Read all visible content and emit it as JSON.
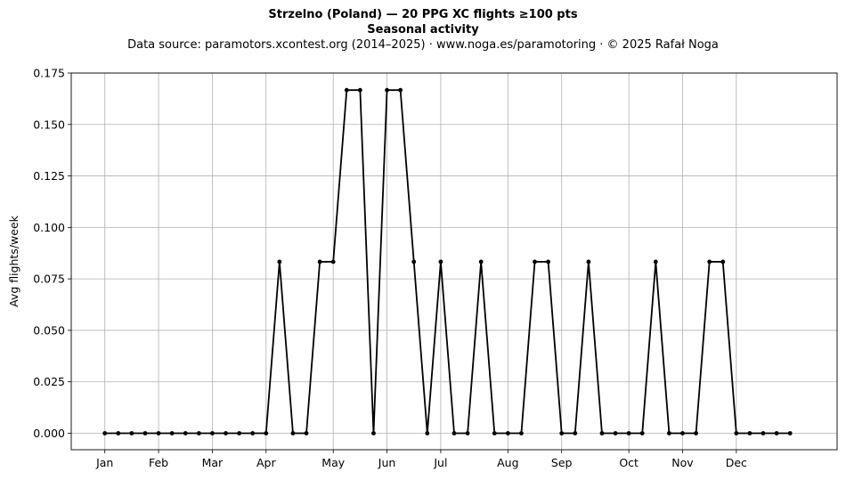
{
  "title_line1": "Strzelno (Poland)  —  20 PPG XC flights ≥100 pts",
  "title_line2": "Seasonal activity",
  "subtitle": "Data source: paramotors.xcontest.org (2014–2025)  ·  www.noga.es/paramotoring  ·  © 2025 Rafał Noga",
  "chart_data": {
    "type": "line",
    "xlabel": "",
    "ylabel": "Avg flights/week",
    "x_unit": "week of year",
    "x_ticks": [
      {
        "label": "Jan",
        "week": 1
      },
      {
        "label": "Feb",
        "week": 5
      },
      {
        "label": "Mar",
        "week": 9
      },
      {
        "label": "Apr",
        "week": 13
      },
      {
        "label": "May",
        "week": 18
      },
      {
        "label": "Jun",
        "week": 22
      },
      {
        "label": "Jul",
        "week": 26
      },
      {
        "label": "Aug",
        "week": 31
      },
      {
        "label": "Sep",
        "week": 35
      },
      {
        "label": "Oct",
        "week": 40
      },
      {
        "label": "Nov",
        "week": 44
      },
      {
        "label": "Dec",
        "week": 48
      }
    ],
    "y_ticks": [
      "0.000",
      "0.025",
      "0.050",
      "0.075",
      "0.100",
      "0.125",
      "0.150",
      "0.175"
    ],
    "ylim": [
      -0.008,
      0.175
    ],
    "xlim": [
      -1.5,
      55.5
    ],
    "grid": true,
    "line_color": "#000000",
    "grid_color": "#b0b0b0",
    "x": [
      1,
      2,
      3,
      4,
      5,
      6,
      7,
      8,
      9,
      10,
      11,
      12,
      13,
      14,
      15,
      16,
      17,
      18,
      19,
      20,
      21,
      22,
      23,
      24,
      25,
      26,
      27,
      28,
      29,
      30,
      31,
      32,
      33,
      34,
      35,
      36,
      37,
      38,
      39,
      40,
      41,
      42,
      43,
      44,
      45,
      46,
      47,
      48,
      49,
      50,
      51,
      52
    ],
    "values": [
      0,
      0,
      0,
      0,
      0,
      0,
      0,
      0,
      0,
      0,
      0,
      0,
      0,
      0.0833,
      0,
      0,
      0.0833,
      0.0833,
      0.1667,
      0.1667,
      0,
      0.1667,
      0.1667,
      0.0833,
      0,
      0.0833,
      0,
      0,
      0.0833,
      0,
      0,
      0,
      0.0833,
      0.0833,
      0,
      0,
      0.0833,
      0,
      0,
      0,
      0,
      0.0833,
      0,
      0,
      0,
      0.0833,
      0.0833,
      0,
      0,
      0,
      0,
      0
    ]
  }
}
